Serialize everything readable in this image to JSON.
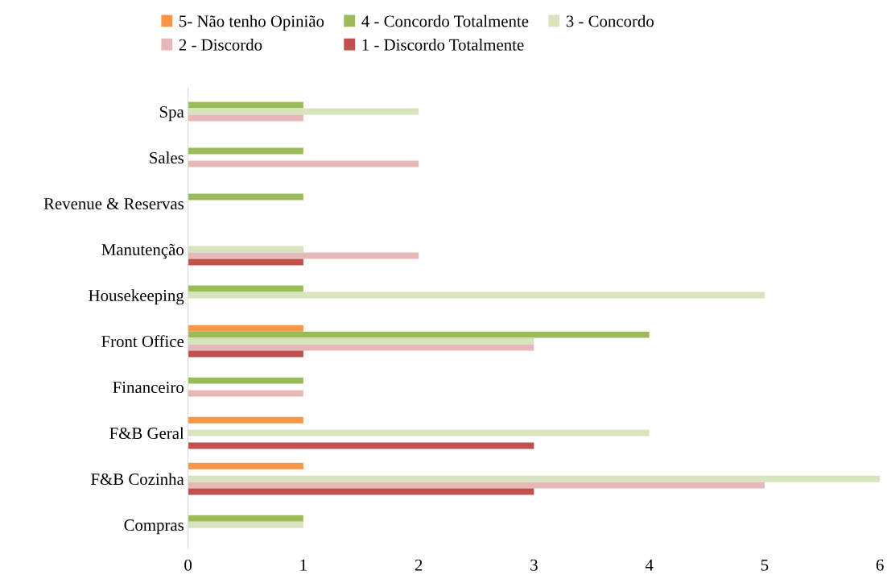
{
  "chart_data": {
    "type": "bar",
    "orientation": "horizontal",
    "categories": [
      "Spa",
      "Sales",
      "Revenue & Reservas",
      "Manutenção",
      "Housekeeping",
      "Front Office",
      "Financeiro",
      "F&B Geral",
      "F&B Cozinha",
      "Compras"
    ],
    "series": [
      {
        "name": "5- Não tenho Opinião",
        "color": "#f79646",
        "values": [
          null,
          null,
          null,
          null,
          null,
          1,
          null,
          1,
          1,
          null
        ]
      },
      {
        "name": "4 - Concordo Totalmente",
        "color": "#9bbb59",
        "values": [
          1,
          1,
          1,
          null,
          1,
          4,
          1,
          null,
          null,
          1
        ]
      },
      {
        "name": "3 - Concordo",
        "color": "#d7e4bd",
        "values": [
          2,
          null,
          null,
          1,
          5,
          3,
          null,
          4,
          6,
          1
        ]
      },
      {
        "name": "2 - Discordo",
        "color": "#e6b9b8",
        "values": [
          1,
          2,
          null,
          2,
          null,
          3,
          1,
          null,
          5,
          null
        ]
      },
      {
        "name": "1 - Discordo Totalmente",
        "color": "#c0504d",
        "values": [
          null,
          null,
          null,
          1,
          null,
          1,
          null,
          3,
          3,
          null
        ]
      }
    ],
    "xlim": [
      0,
      6
    ],
    "xticks": [
      0,
      1,
      2,
      3,
      4,
      5,
      6
    ],
    "grid": false,
    "legend": "top"
  }
}
